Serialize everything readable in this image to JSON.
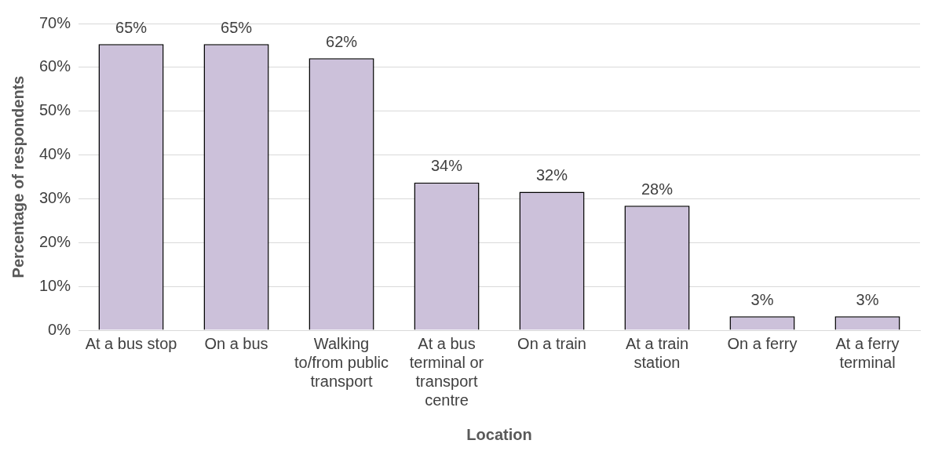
{
  "chart_data": {
    "type": "bar",
    "xlabel": "Location",
    "ylabel": "Percentage of respondents",
    "categories": [
      "At a bus stop",
      "On a bus",
      "Walking to/from public transport",
      "At a bus terminal or transport centre",
      "On a train",
      "At a train station",
      "On a ferry",
      "At a ferry terminal"
    ],
    "values": [
      65.3,
      65.3,
      62.1,
      33.7,
      31.6,
      28.4,
      3.2,
      3.2
    ],
    "value_labels": [
      "65%",
      "65%",
      "62%",
      "34%",
      "32%",
      "28%",
      "3%",
      "3%"
    ],
    "color": "#ccc1da",
    "ylim": [
      0,
      70
    ],
    "yticks": [
      {
        "value": 0,
        "label": "0%"
      },
      {
        "value": 10,
        "label": "10%"
      },
      {
        "value": 20,
        "label": "20%"
      },
      {
        "value": 30,
        "label": "30%"
      },
      {
        "value": 40,
        "label": "40%"
      },
      {
        "value": 50,
        "label": "50%"
      },
      {
        "value": 60,
        "label": "60%"
      },
      {
        "value": 70,
        "label": "70%"
      }
    ],
    "grid": "y",
    "legend": false
  }
}
